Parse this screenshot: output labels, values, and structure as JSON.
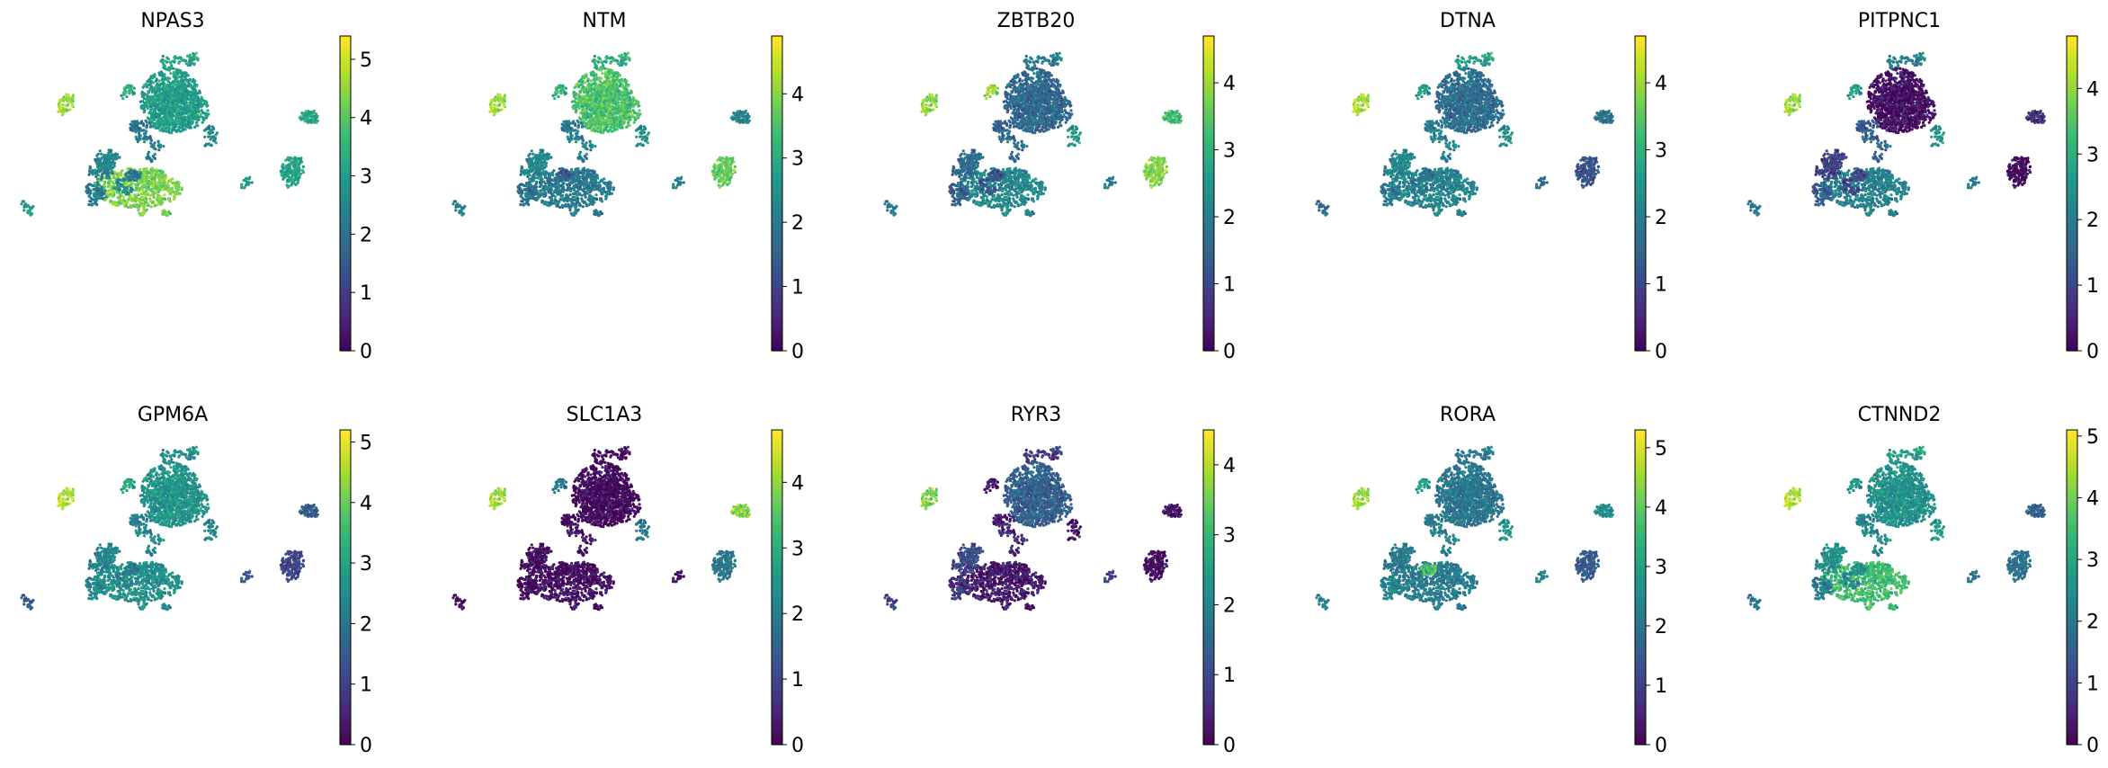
{
  "figure": {
    "layout": "2 rows x 5 columns",
    "colormap": "viridis"
  },
  "chart_data": [
    {
      "type": "scatter",
      "title": "NPAS3",
      "colorbar": {
        "min": 0,
        "max": 5.4,
        "ticks": [
          0,
          1,
          2,
          3,
          4,
          5
        ]
      },
      "expression": {
        "cA": 3.2,
        "cB": 3.0,
        "cC": 4.3,
        "cD": 2.5,
        "cE": 2.3,
        "cF": 2.6,
        "cG": 2.1,
        "cH": 2.2,
        "cI": 2.6,
        "cJ": 4.6,
        "cK": 3.3,
        "cL": 3.2,
        "cM": 3.2,
        "cN": 3.0
      }
    },
    {
      "type": "scatter",
      "title": "NTM",
      "colorbar": {
        "min": 0,
        "max": 4.9,
        "ticks": [
          0,
          1,
          2,
          3,
          4
        ]
      },
      "expression": {
        "cA": 3.1,
        "cB": 3.5,
        "cC": 2.0,
        "cD": 2.3,
        "cE": 1.9,
        "cF": 2.0,
        "cG": 1.4,
        "cH": 2.1,
        "cI": 2.5,
        "cJ": 4.2,
        "cK": 3.1,
        "cL": 3.8,
        "cM": 2.2,
        "cN": 2.2
      }
    },
    {
      "type": "scatter",
      "title": "ZBTB20",
      "colorbar": {
        "min": 0,
        "max": 4.7,
        "ticks": [
          0,
          1,
          2,
          3,
          4
        ]
      },
      "expression": {
        "cA": 2.0,
        "cB": 1.6,
        "cC": 2.2,
        "cD": 1.7,
        "cE": 1.5,
        "cF": 1.3,
        "cG": 1.2,
        "cH": 1.6,
        "cI": 2.6,
        "cJ": 3.9,
        "cK": 3.9,
        "cL": 3.9,
        "cM": 3.2,
        "cN": 2.0
      }
    },
    {
      "type": "scatter",
      "title": "DTNA",
      "colorbar": {
        "min": 0,
        "max": 4.7,
        "ticks": [
          0,
          1,
          2,
          3,
          4
        ]
      },
      "expression": {
        "cA": 2.7,
        "cB": 1.7,
        "cC": 2.1,
        "cD": 2.2,
        "cE": 2.0,
        "cF": 1.9,
        "cG": 1.8,
        "cH": 2.1,
        "cI": 2.4,
        "cJ": 4.1,
        "cK": 2.5,
        "cL": 1.3,
        "cM": 1.8,
        "cN": 1.7
      }
    },
    {
      "type": "scatter",
      "title": "PITPNC1",
      "colorbar": {
        "min": 0,
        "max": 4.8,
        "ticks": [
          0,
          1,
          2,
          3,
          4
        ]
      },
      "expression": {
        "cA": 2.1,
        "cB": 0.2,
        "cC": 2.1,
        "cD": 1.0,
        "cE": 1.5,
        "cF": 1.0,
        "cG": 1.1,
        "cH": 1.5,
        "cI": 2.5,
        "cJ": 4.1,
        "cK": 2.6,
        "cL": 0.2,
        "cM": 0.7,
        "cN": 2.0
      }
    },
    {
      "type": "scatter",
      "title": "GPM6A",
      "colorbar": {
        "min": 0,
        "max": 5.2,
        "ticks": [
          0,
          1,
          2,
          3,
          4,
          5
        ]
      },
      "expression": {
        "cA": 2.6,
        "cB": 2.7,
        "cC": 2.6,
        "cD": 2.4,
        "cE": 2.5,
        "cF": 2.3,
        "cG": 2.2,
        "cH": 2.4,
        "cI": 2.4,
        "cJ": 4.6,
        "cK": 3.0,
        "cL": 1.2,
        "cM": 1.5,
        "cN": 1.5
      }
    },
    {
      "type": "scatter",
      "title": "SLC1A3",
      "colorbar": {
        "min": 0,
        "max": 4.8,
        "ticks": [
          0,
          1,
          2,
          3,
          4
        ]
      },
      "expression": {
        "cA": 0.1,
        "cB": 0.1,
        "cC": 0.2,
        "cD": 0.2,
        "cE": 0.1,
        "cF": 0.1,
        "cG": 0.1,
        "cH": 0.2,
        "cI": 2.0,
        "cJ": 4.1,
        "cK": 1.9,
        "cL": 2.0,
        "cM": 3.9,
        "cN": 0.2
      }
    },
    {
      "type": "scatter",
      "title": "RYR3",
      "colorbar": {
        "min": 0,
        "max": 4.5,
        "ticks": [
          0,
          1,
          2,
          3,
          4
        ]
      },
      "expression": {
        "cA": 0.8,
        "cB": 1.4,
        "cC": 0.3,
        "cD": 1.1,
        "cE": 0.8,
        "cF": 0.3,
        "cG": 0.3,
        "cH": 0.5,
        "cI": 0.3,
        "cJ": 3.6,
        "cK": 0.2,
        "cL": 0.2,
        "cM": 0.2,
        "cN": 0.9
      }
    },
    {
      "type": "scatter",
      "title": "RORA",
      "colorbar": {
        "min": 0,
        "max": 5.3,
        "ticks": [
          0,
          1,
          2,
          3,
          4,
          5
        ]
      },
      "expression": {
        "cA": 2.2,
        "cB": 2.1,
        "cC": 2.2,
        "cD": 2.2,
        "cE": 2.5,
        "cF": 2.2,
        "cG": 3.8,
        "cH": 2.3,
        "cI": 2.8,
        "cJ": 4.5,
        "cK": 2.9,
        "cL": 1.6,
        "cM": 2.6,
        "cN": 2.4
      }
    },
    {
      "type": "scatter",
      "title": "CTNND2",
      "colorbar": {
        "min": 0,
        "max": 5.1,
        "ticks": [
          0,
          1,
          2,
          3,
          4,
          5
        ]
      },
      "expression": {
        "cA": 2.9,
        "cB": 2.6,
        "cC": 3.5,
        "cD": 2.6,
        "cE": 2.2,
        "cF": 2.4,
        "cG": 2.6,
        "cH": 2.4,
        "cI": 2.8,
        "cJ": 4.5,
        "cK": 2.6,
        "cL": 2.0,
        "cM": 1.6,
        "cN": 2.0
      }
    }
  ]
}
